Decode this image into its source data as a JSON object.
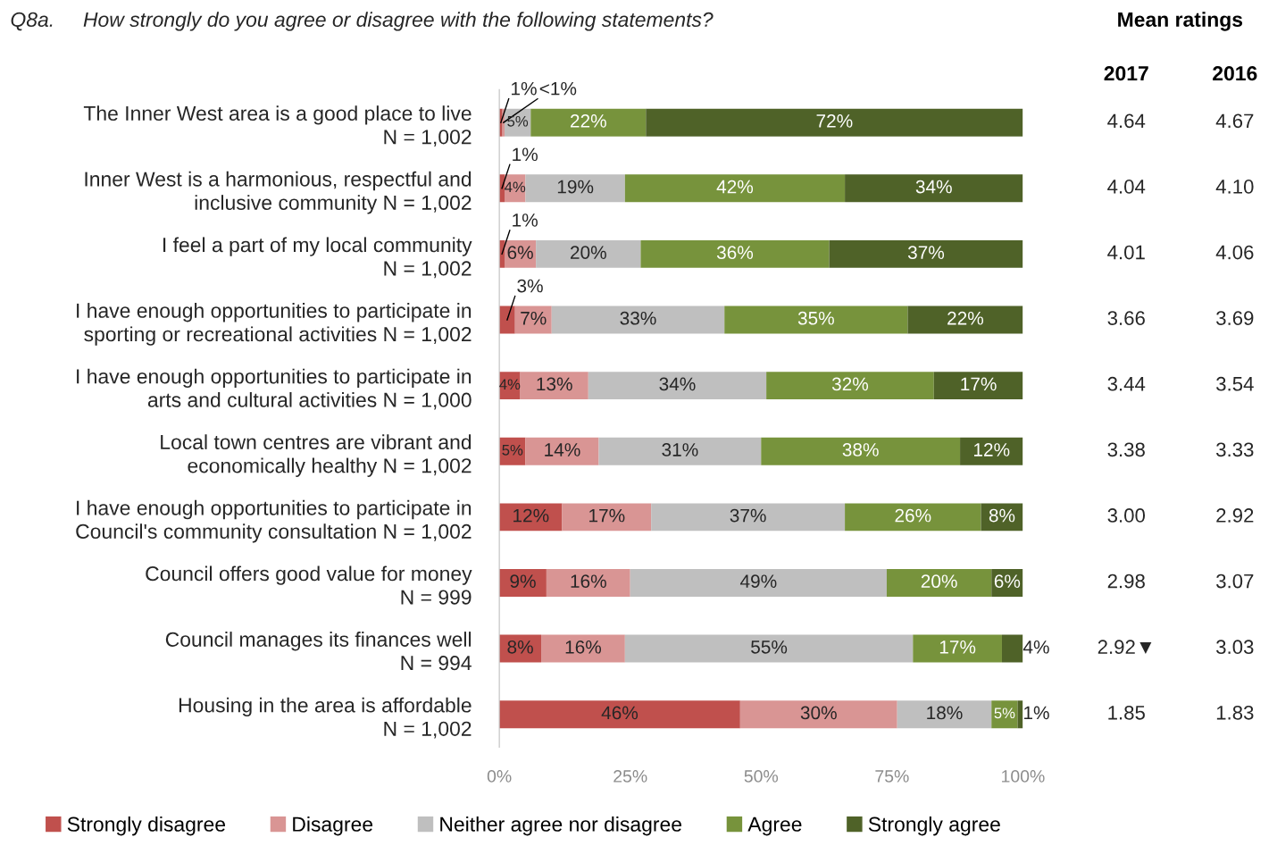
{
  "chart_data": {
    "type": "bar",
    "orientation": "horizontal",
    "stacked": true,
    "title": "Q8a.     How strongly do you agree or disagree with the following statements?",
    "categories": [
      "The Inner West area is a good place to live\nN = 1,002",
      "Inner West is a harmonious, respectful and\ninclusive community N = 1,002",
      "I feel a part of my local community\nN = 1,002",
      "I have enough opportunities to participate in\nsporting or recreational activities N = 1,002",
      "I have enough opportunities to participate in\narts and cultural activities N = 1,000",
      "Local town centres are vibrant and\neconomically healthy N = 1,002",
      "I have enough opportunities to participate in\nCouncil's community consultation N = 1,002",
      "Council offers good value for money\nN = 999",
      "Council manages its finances well\nN = 994",
      "Housing in the area is affordable\nN = 1,002"
    ],
    "series": [
      {
        "name": "Strongly disagree",
        "color": "#c0504d",
        "values": [
          0.6,
          1,
          1,
          3,
          4,
          5,
          12,
          9,
          8,
          46
        ],
        "value_labels": [
          "1%",
          "1%",
          "1%",
          "3%",
          "4%",
          "5%",
          "12%",
          "9%",
          "8%",
          "46%"
        ]
      },
      {
        "name": "Disagree",
        "color": "#d99594",
        "values": [
          0.4,
          4,
          6,
          7,
          13,
          14,
          17,
          16,
          16,
          30
        ],
        "value_labels": [
          "<1%",
          "4%",
          "6%",
          "7%",
          "13%",
          "14%",
          "17%",
          "16%",
          "16%",
          "30%"
        ]
      },
      {
        "name": "Neither agree nor disagree",
        "color": "#bfbfbf",
        "values": [
          5,
          19,
          20,
          33,
          34,
          31,
          37,
          49,
          55,
          18
        ],
        "value_labels": [
          "5%",
          "19%",
          "20%",
          "33%",
          "34%",
          "31%",
          "37%",
          "49%",
          "55%",
          "18%"
        ]
      },
      {
        "name": "Agree",
        "color": "#77933c",
        "values": [
          22,
          42,
          36,
          35,
          32,
          38,
          26,
          20,
          17,
          5
        ],
        "value_labels": [
          "22%",
          "42%",
          "36%",
          "35%",
          "32%",
          "38%",
          "26%",
          "20%",
          "17%",
          "5%"
        ]
      },
      {
        "name": "Strongly agree",
        "color": "#4f6228",
        "values": [
          72,
          34,
          37,
          22,
          17,
          12,
          8,
          6,
          4,
          1
        ],
        "value_labels": [
          "72%",
          "34%",
          "37%",
          "22%",
          "17%",
          "12%",
          "8%",
          "6%",
          "4%",
          "1%"
        ]
      }
    ],
    "xlim": [
      0,
      100
    ],
    "xticks": [
      {
        "value": 0,
        "label": "0%"
      },
      {
        "value": 25,
        "label": "25%"
      },
      {
        "value": 50,
        "label": "50%"
      },
      {
        "value": 75,
        "label": "75%"
      },
      {
        "value": 100,
        "label": "100%"
      }
    ],
    "grid": false,
    "legend": "bottom",
    "annotations": [
      "Mean ratings",
      "2017",
      "2016",
      "4.64",
      "4.67",
      "4.04",
      "4.10",
      "4.01",
      "4.06",
      "3.66",
      "3.69",
      "3.44",
      "3.54",
      "3.38",
      "3.33",
      "3.00",
      "2.92",
      "2.98",
      "3.07",
      "2.92▼",
      "3.03",
      "1.85",
      "1.83"
    ]
  }
}
